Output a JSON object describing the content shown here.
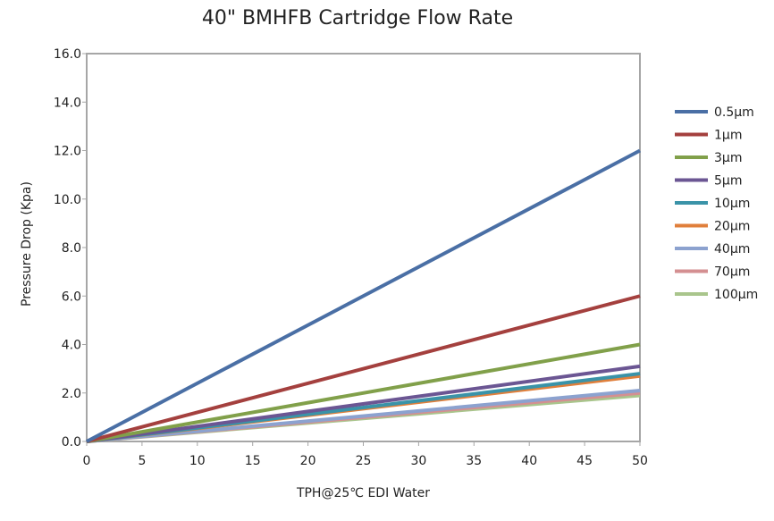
{
  "chart_data": {
    "type": "line",
    "title": "40\" BMHFB Cartridge Flow Rate",
    "xlabel": "TPH@25℃  EDI Water",
    "ylabel": "Pressure Drop (Kpa)",
    "xlim": [
      0,
      50
    ],
    "ylim": [
      0,
      16
    ],
    "xticks": [
      "0",
      "5",
      "10",
      "15",
      "20",
      "25",
      "30",
      "35",
      "40",
      "45",
      "50"
    ],
    "yticks": [
      "0.0",
      "2.0",
      "4.0",
      "6.0",
      "8.0",
      "10.0",
      "12.0",
      "14.0",
      "16.0"
    ],
    "grid": false,
    "legend": "right",
    "x": [
      0,
      50
    ],
    "series": [
      {
        "name": "0.5μm",
        "values": [
          0,
          12.0
        ],
        "color": "#4a6fa5"
      },
      {
        "name": "1μm",
        "values": [
          0,
          6.0
        ],
        "color": "#a4403e"
      },
      {
        "name": "3μm",
        "values": [
          0,
          4.0
        ],
        "color": "#81a04a"
      },
      {
        "name": "5μm",
        "values": [
          0,
          3.1
        ],
        "color": "#6b5693"
      },
      {
        "name": "10μm",
        "values": [
          0,
          2.8
        ],
        "color": "#3a93a8"
      },
      {
        "name": "20μm",
        "values": [
          0,
          2.7
        ],
        "color": "#e07f3b"
      },
      {
        "name": "40μm",
        "values": [
          0,
          2.1
        ],
        "color": "#8ca2cf"
      },
      {
        "name": "70μm",
        "values": [
          0,
          2.0
        ],
        "color": "#d48f91"
      },
      {
        "name": "100μm",
        "values": [
          0,
          1.9
        ],
        "color": "#a9c58c"
      }
    ]
  }
}
